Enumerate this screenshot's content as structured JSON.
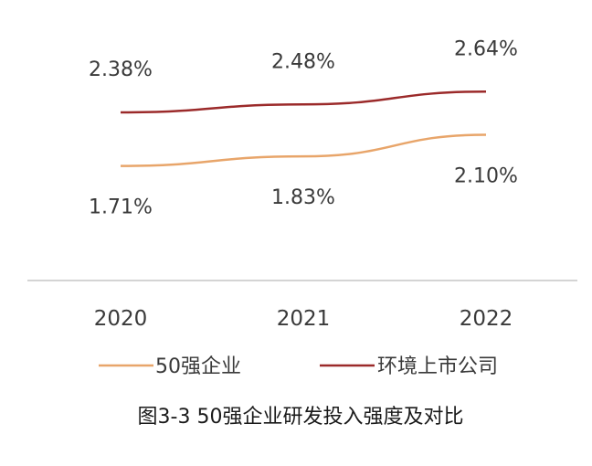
{
  "chart_data": {
    "type": "line",
    "categories": [
      "2020",
      "2021",
      "2022"
    ],
    "series": [
      {
        "name": "50强企业",
        "values": [
          1.71,
          1.83,
          2.1
        ],
        "labels": [
          "1.71%",
          "1.83%",
          "2.10%"
        ],
        "color": "#e8a56a"
      },
      {
        "name": "环境上市公司",
        "values": [
          2.38,
          2.48,
          2.64
        ],
        "labels": [
          "2.38%",
          "2.48%",
          "2.64%"
        ],
        "color": "#9b2a2a"
      }
    ],
    "title": "图3-3 50强企业研发投入强度及对比",
    "xlabel": "",
    "ylabel": "",
    "grid": false,
    "legend_position": "bottom"
  }
}
